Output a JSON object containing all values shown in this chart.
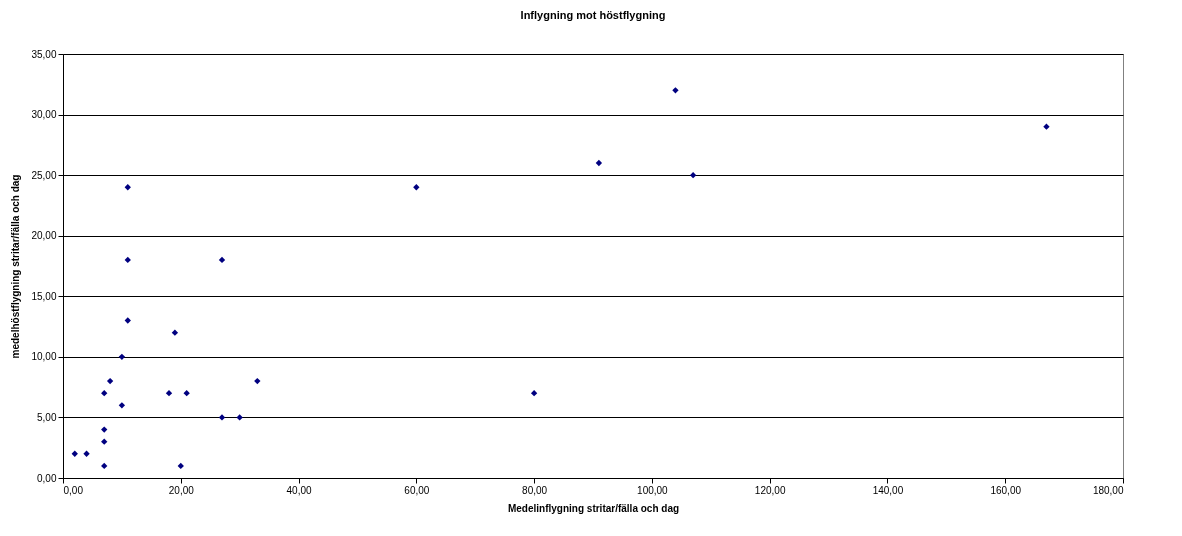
{
  "chart_data": {
    "type": "scatter",
    "title": "Inflygning mot höstflygning",
    "xlabel": "Medelinflygning  stritar/fälla och dag",
    "ylabel": "medelhöstflygning stritar/fälla och dag",
    "x": [
      2,
      4,
      7,
      7,
      7,
      7,
      8,
      10,
      10,
      11,
      11,
      11,
      18,
      19,
      20,
      21,
      27,
      27,
      30,
      33,
      60,
      80,
      91,
      104,
      107,
      167
    ],
    "series": [
      {
        "color": "#000080",
        "values": [
          2,
          2,
          7,
          4,
          3,
          1,
          8,
          10,
          6,
          24,
          18,
          13,
          7,
          12,
          1,
          7,
          18,
          5,
          5,
          8,
          24,
          7,
          26,
          32,
          25,
          29
        ]
      }
    ],
    "xlim": [
      0,
      180
    ],
    "xticks": [
      {
        "value": 0,
        "label": "0,00"
      },
      {
        "value": 20,
        "label": "20,00"
      },
      {
        "value": 40,
        "label": "40,00"
      },
      {
        "value": 60,
        "label": "60,00"
      },
      {
        "value": 80,
        "label": "80,00"
      },
      {
        "value": 100,
        "label": "100,00"
      },
      {
        "value": 120,
        "label": "120,00"
      },
      {
        "value": 140,
        "label": "140,00"
      },
      {
        "value": 160,
        "label": "160,00"
      },
      {
        "value": 180,
        "label": "180,00"
      }
    ],
    "ylim": [
      0,
      35
    ],
    "yticks": [
      {
        "value": 0,
        "label": "0,00"
      },
      {
        "value": 5,
        "label": "5,00"
      },
      {
        "value": 10,
        "label": "10,00"
      },
      {
        "value": 15,
        "label": "15,00"
      },
      {
        "value": 20,
        "label": "20,00"
      },
      {
        "value": 25,
        "label": "25,00"
      },
      {
        "value": 30,
        "label": "30,00"
      },
      {
        "value": 35,
        "label": "35,00"
      }
    ],
    "grid": "y",
    "marker": "diamond"
  }
}
